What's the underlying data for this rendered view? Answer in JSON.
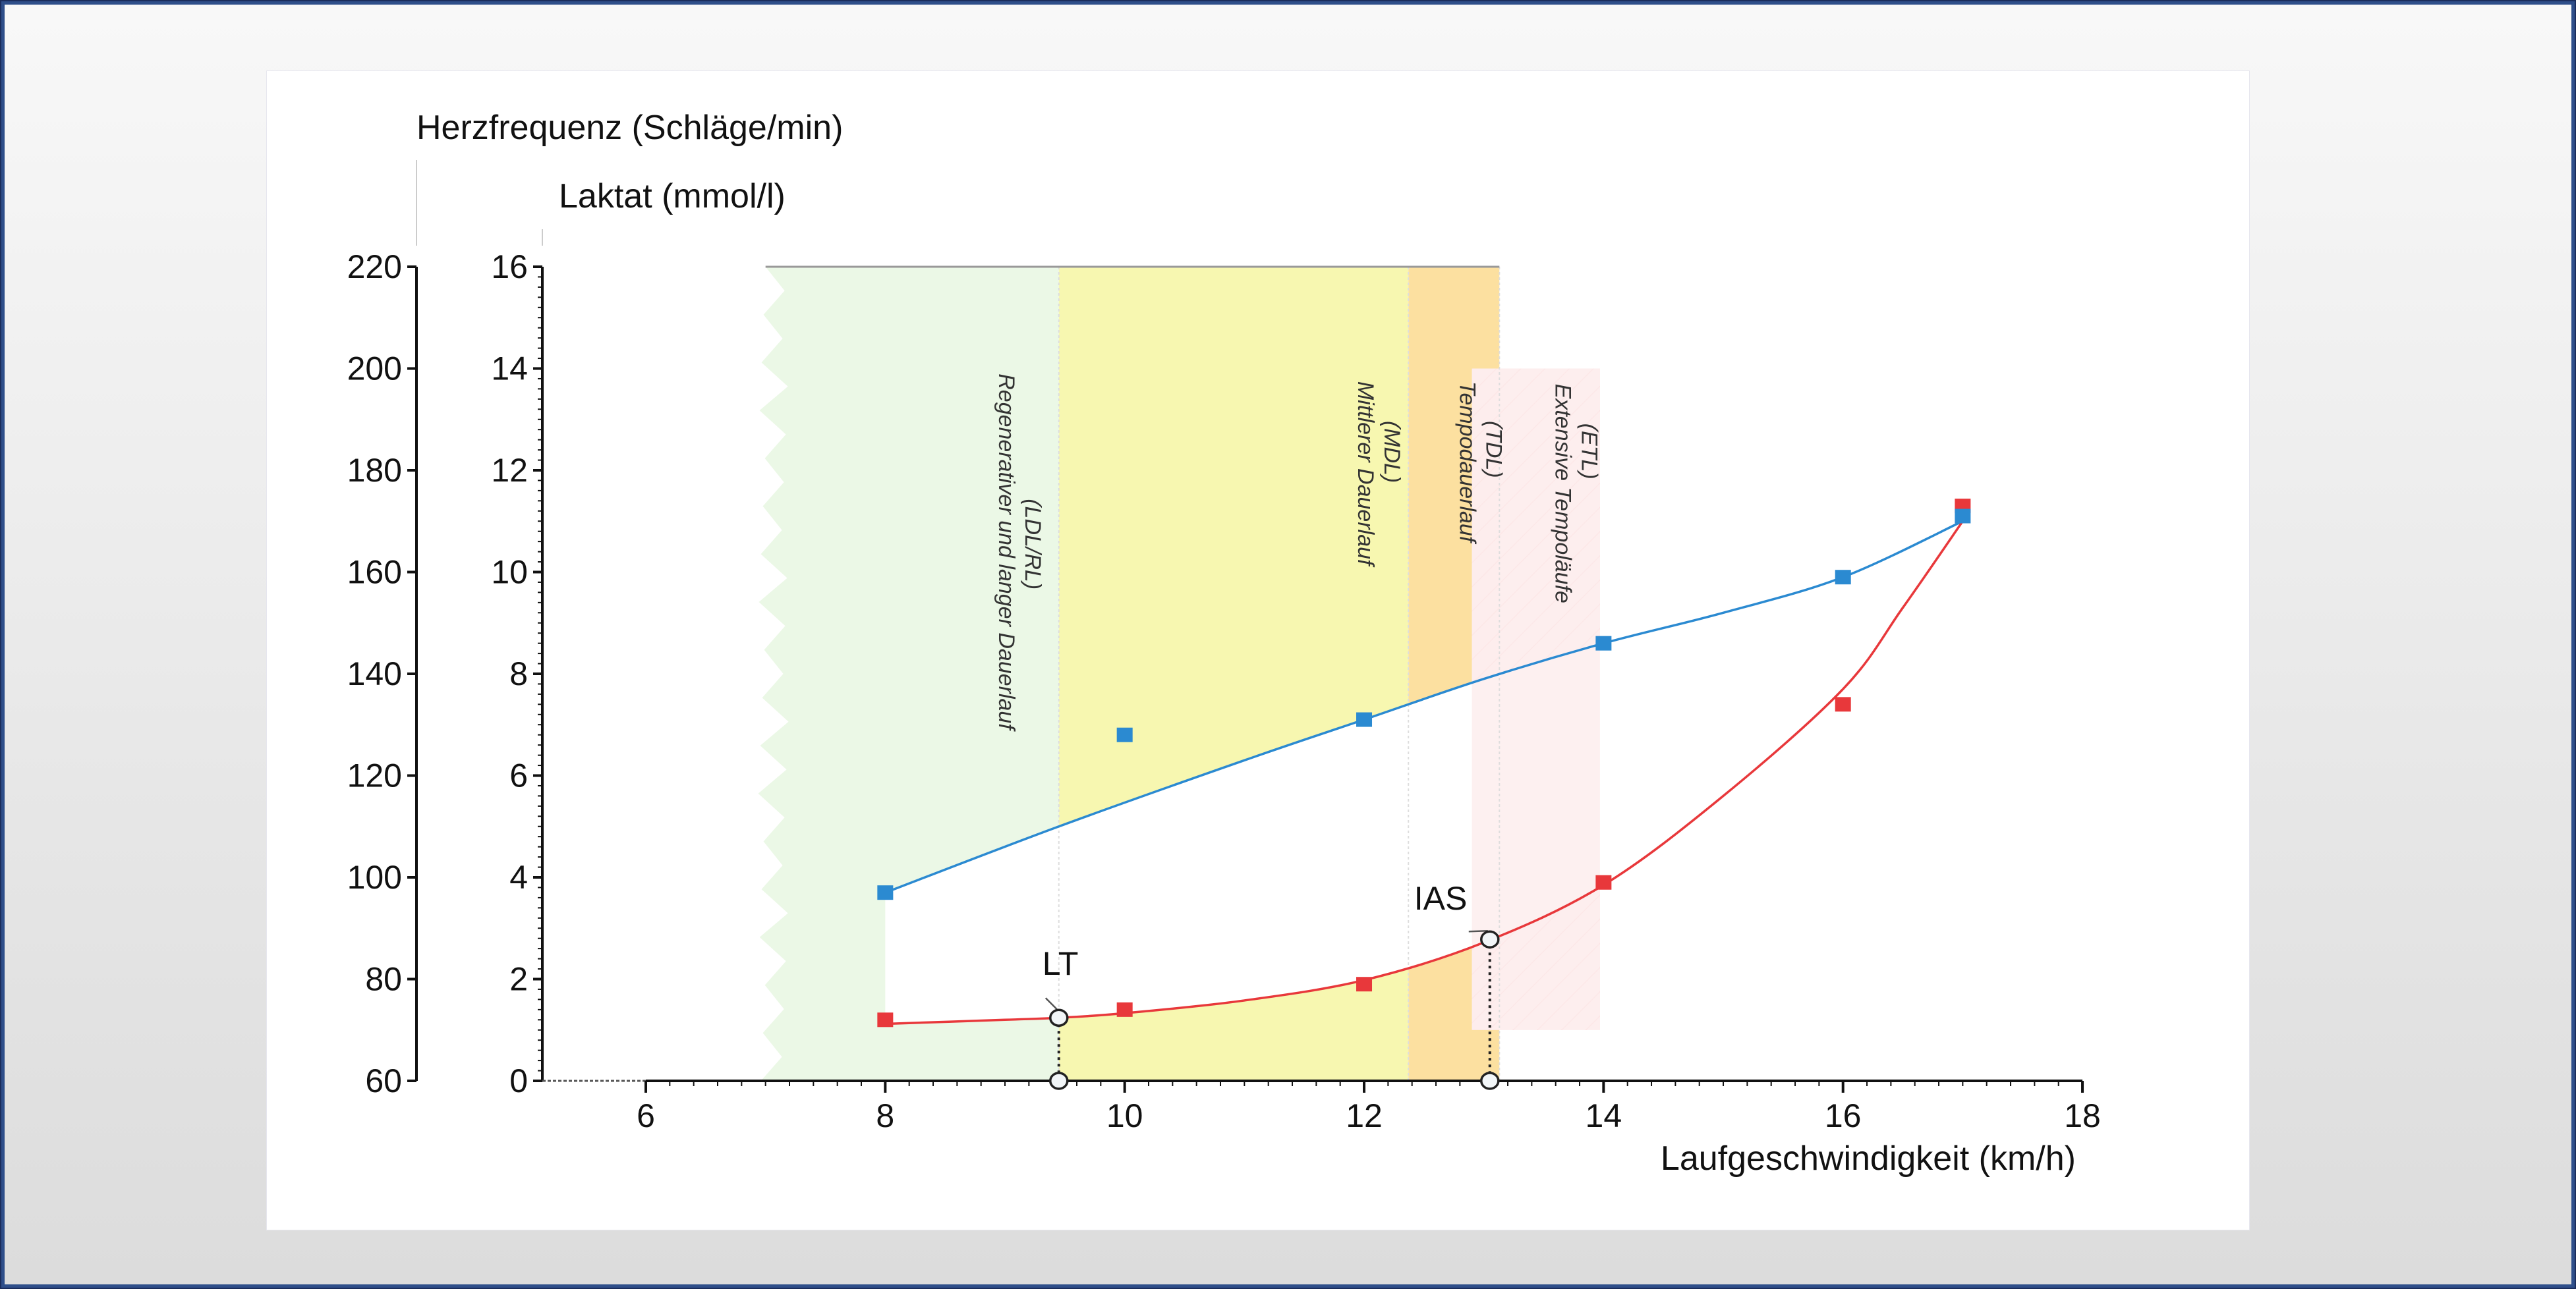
{
  "colors": {
    "frame_border": "#2f4f8a",
    "heart_rate": "#2b8ad1",
    "lactate": "#e8383b",
    "zone_ldl": "#ebf8e6",
    "zone_mdl": "#f7f7b0",
    "zone_tdl": "#fce0a0",
    "zone_etl": "#fde0e0",
    "zone_etl_hatch": "#f4a0a4"
  },
  "chart_data": {
    "type": "line",
    "title": "",
    "xlabel": "Laufgeschwindigkeit (km/h)",
    "ylabel": "Laktat (mmol/l)",
    "ylabel_secondary": "Herzfrequenz (Schläge/min)",
    "xlim": [
      5.3,
      18
    ],
    "ylim": [
      0,
      16
    ],
    "ylim_secondary": [
      60,
      220
    ],
    "x_ticks": [
      6,
      8,
      10,
      12,
      14,
      16,
      18
    ],
    "y_ticks": [
      0,
      2,
      4,
      6,
      8,
      10,
      12,
      14,
      16
    ],
    "y_ticks_secondary": [
      60,
      80,
      100,
      120,
      140,
      160,
      180,
      200,
      220
    ],
    "grid": false,
    "legend": null,
    "series": [
      {
        "name": "Herzfrequenz",
        "axis": "secondary",
        "color": "#2b8ad1",
        "x": [
          8,
          10,
          12,
          14,
          16,
          17
        ],
        "values": [
          97,
          128,
          131,
          146,
          159,
          171
        ]
      },
      {
        "name": "Laktat",
        "axis": "primary",
        "color": "#e8383b",
        "x": [
          8,
          10,
          12,
          14,
          16,
          17
        ],
        "values": [
          1.2,
          1.4,
          1.9,
          3.9,
          7.4,
          11.3
        ]
      }
    ],
    "fit_curves": {
      "heart_rate": [
        [
          8,
          97
        ],
        [
          9.45,
          110
        ],
        [
          11,
          123
        ],
        [
          12,
          131
        ],
        [
          13,
          139
        ],
        [
          14,
          146
        ],
        [
          15,
          152
        ],
        [
          16,
          159
        ],
        [
          17,
          170
        ]
      ],
      "lactate": [
        [
          8,
          1.12
        ],
        [
          9,
          1.2
        ],
        [
          9.45,
          1.24
        ],
        [
          10,
          1.33
        ],
        [
          11,
          1.58
        ],
        [
          12,
          1.98
        ],
        [
          13,
          2.72
        ],
        [
          14,
          3.85
        ],
        [
          15,
          5.6
        ],
        [
          16,
          7.7
        ],
        [
          16.5,
          9.3
        ],
        [
          17,
          11.0
        ]
      ]
    },
    "annotations": [
      {
        "label": "LT",
        "x": 9.45,
        "y": 1.24
      },
      {
        "label": "IAS",
        "x": 13.05,
        "y": 2.78
      }
    ],
    "zones": [
      {
        "id": "ldl",
        "label": "Regenerativer und langer Dauerlauf",
        "abbr": "(LDL/RL)",
        "x_from": 7.0,
        "x_to": 9.45,
        "y_from": 0,
        "y_to": 16
      },
      {
        "id": "mdl",
        "label": "Mittlerer Dauerlauf",
        "abbr": "(MDL)",
        "x_from": 9.45,
        "x_to": 12.37,
        "y_from": 0,
        "y_to": 16
      },
      {
        "id": "tdl",
        "label": "Tempodauerlauf",
        "abbr": "(TDL)",
        "x_from": 12.37,
        "x_to": 13.13,
        "y_from": 0,
        "y_to": 16
      },
      {
        "id": "etl",
        "label": "Extensive Tempoläufe",
        "abbr": "(ETL)",
        "x_from": 12.9,
        "x_to": 13.97,
        "y_from": 1.0,
        "y_to": 14.0
      }
    ]
  }
}
